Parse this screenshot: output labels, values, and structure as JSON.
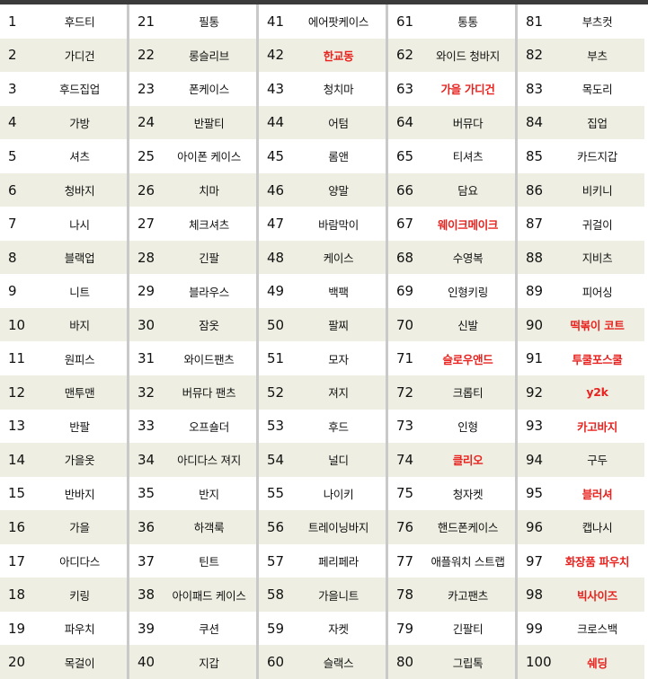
{
  "colors": {
    "highlight": "#e8231f",
    "alt_row": "#eeeee2",
    "top_bar": "#3b3b3b"
  },
  "groups": [
    {
      "items": [
        {
          "rank": "1",
          "keyword": "후드티"
        },
        {
          "rank": "2",
          "keyword": "가디건"
        },
        {
          "rank": "3",
          "keyword": "후드집업"
        },
        {
          "rank": "4",
          "keyword": "가방"
        },
        {
          "rank": "5",
          "keyword": "셔츠"
        },
        {
          "rank": "6",
          "keyword": "청바지"
        },
        {
          "rank": "7",
          "keyword": "나시"
        },
        {
          "rank": "8",
          "keyword": "블랙업"
        },
        {
          "rank": "9",
          "keyword": "니트"
        },
        {
          "rank": "10",
          "keyword": "바지"
        },
        {
          "rank": "11",
          "keyword": "원피스"
        },
        {
          "rank": "12",
          "keyword": "맨투맨"
        },
        {
          "rank": "13",
          "keyword": "반팔"
        },
        {
          "rank": "14",
          "keyword": "가을옷"
        },
        {
          "rank": "15",
          "keyword": "반바지"
        },
        {
          "rank": "16",
          "keyword": "가을"
        },
        {
          "rank": "17",
          "keyword": "아디다스"
        },
        {
          "rank": "18",
          "keyword": "키링"
        },
        {
          "rank": "19",
          "keyword": "파우치"
        },
        {
          "rank": "20",
          "keyword": "목걸이"
        }
      ]
    },
    {
      "items": [
        {
          "rank": "21",
          "keyword": "필통"
        },
        {
          "rank": "22",
          "keyword": "롱슬리브"
        },
        {
          "rank": "23",
          "keyword": "폰케이스"
        },
        {
          "rank": "24",
          "keyword": "반팔티"
        },
        {
          "rank": "25",
          "keyword": "아이폰 케이스"
        },
        {
          "rank": "26",
          "keyword": "치마"
        },
        {
          "rank": "27",
          "keyword": "체크셔츠"
        },
        {
          "rank": "28",
          "keyword": "긴팔"
        },
        {
          "rank": "29",
          "keyword": "블라우스"
        },
        {
          "rank": "30",
          "keyword": "잠옷"
        },
        {
          "rank": "31",
          "keyword": "와이드팬츠"
        },
        {
          "rank": "32",
          "keyword": "버뮤다 팬츠"
        },
        {
          "rank": "33",
          "keyword": "오프숄더"
        },
        {
          "rank": "34",
          "keyword": "아디다스 져지"
        },
        {
          "rank": "35",
          "keyword": "반지"
        },
        {
          "rank": "36",
          "keyword": "하객룩"
        },
        {
          "rank": "37",
          "keyword": "틴트"
        },
        {
          "rank": "38",
          "keyword": "아이패드 케이스"
        },
        {
          "rank": "39",
          "keyword": "쿠션"
        },
        {
          "rank": "40",
          "keyword": "지갑"
        }
      ]
    },
    {
      "items": [
        {
          "rank": "41",
          "keyword": "에어팟케이스"
        },
        {
          "rank": "42",
          "keyword": "한교동",
          "highlight": true
        },
        {
          "rank": "43",
          "keyword": "청치마"
        },
        {
          "rank": "44",
          "keyword": "어텀"
        },
        {
          "rank": "45",
          "keyword": "롬앤"
        },
        {
          "rank": "46",
          "keyword": "양말"
        },
        {
          "rank": "47",
          "keyword": "바람막이"
        },
        {
          "rank": "48",
          "keyword": "케이스"
        },
        {
          "rank": "49",
          "keyword": "백팩"
        },
        {
          "rank": "50",
          "keyword": "팔찌"
        },
        {
          "rank": "51",
          "keyword": "모자"
        },
        {
          "rank": "52",
          "keyword": "져지"
        },
        {
          "rank": "53",
          "keyword": "후드"
        },
        {
          "rank": "54",
          "keyword": "널디"
        },
        {
          "rank": "55",
          "keyword": "나이키"
        },
        {
          "rank": "56",
          "keyword": "트레이닝바지"
        },
        {
          "rank": "57",
          "keyword": "페리페라"
        },
        {
          "rank": "58",
          "keyword": "가을니트"
        },
        {
          "rank": "59",
          "keyword": "자켓"
        },
        {
          "rank": "60",
          "keyword": "슬랙스"
        }
      ]
    },
    {
      "items": [
        {
          "rank": "61",
          "keyword": "통통"
        },
        {
          "rank": "62",
          "keyword": "와이드 청바지"
        },
        {
          "rank": "63",
          "keyword": "가을 가디건",
          "highlight": true
        },
        {
          "rank": "64",
          "keyword": "버뮤다"
        },
        {
          "rank": "65",
          "keyword": "티셔츠"
        },
        {
          "rank": "66",
          "keyword": "담요"
        },
        {
          "rank": "67",
          "keyword": "웨이크메이크",
          "highlight": true
        },
        {
          "rank": "68",
          "keyword": "수영복"
        },
        {
          "rank": "69",
          "keyword": "인형키링"
        },
        {
          "rank": "70",
          "keyword": "신발"
        },
        {
          "rank": "71",
          "keyword": "슬로우앤드",
          "highlight": true
        },
        {
          "rank": "72",
          "keyword": "크롭티"
        },
        {
          "rank": "73",
          "keyword": "인형"
        },
        {
          "rank": "74",
          "keyword": "클리오",
          "highlight": true
        },
        {
          "rank": "75",
          "keyword": "청자켓"
        },
        {
          "rank": "76",
          "keyword": "핸드폰케이스"
        },
        {
          "rank": "77",
          "keyword": "애플워치 스트랩"
        },
        {
          "rank": "78",
          "keyword": "카고팬츠"
        },
        {
          "rank": "79",
          "keyword": "긴팔티"
        },
        {
          "rank": "80",
          "keyword": "그립톡"
        }
      ]
    },
    {
      "items": [
        {
          "rank": "81",
          "keyword": "부츠컷"
        },
        {
          "rank": "82",
          "keyword": "부츠"
        },
        {
          "rank": "83",
          "keyword": "목도리"
        },
        {
          "rank": "84",
          "keyword": "집업"
        },
        {
          "rank": "85",
          "keyword": "카드지갑"
        },
        {
          "rank": "86",
          "keyword": "비키니"
        },
        {
          "rank": "87",
          "keyword": "귀걸이"
        },
        {
          "rank": "88",
          "keyword": "지비츠"
        },
        {
          "rank": "89",
          "keyword": "피어싱"
        },
        {
          "rank": "90",
          "keyword": "떡볶이 코트",
          "highlight": true
        },
        {
          "rank": "91",
          "keyword": "투쿨포스쿨",
          "highlight": true
        },
        {
          "rank": "92",
          "keyword": "y2k",
          "highlight": true
        },
        {
          "rank": "93",
          "keyword": "카고바지",
          "highlight": true
        },
        {
          "rank": "94",
          "keyword": "구두"
        },
        {
          "rank": "95",
          "keyword": "블러셔",
          "highlight": true
        },
        {
          "rank": "96",
          "keyword": "캡나시"
        },
        {
          "rank": "97",
          "keyword": "화장품 파우치",
          "highlight": true
        },
        {
          "rank": "98",
          "keyword": "빅사이즈",
          "highlight": true
        },
        {
          "rank": "99",
          "keyword": "크로스백"
        },
        {
          "rank": "100",
          "keyword": "쉐딩",
          "highlight": true
        }
      ]
    }
  ]
}
